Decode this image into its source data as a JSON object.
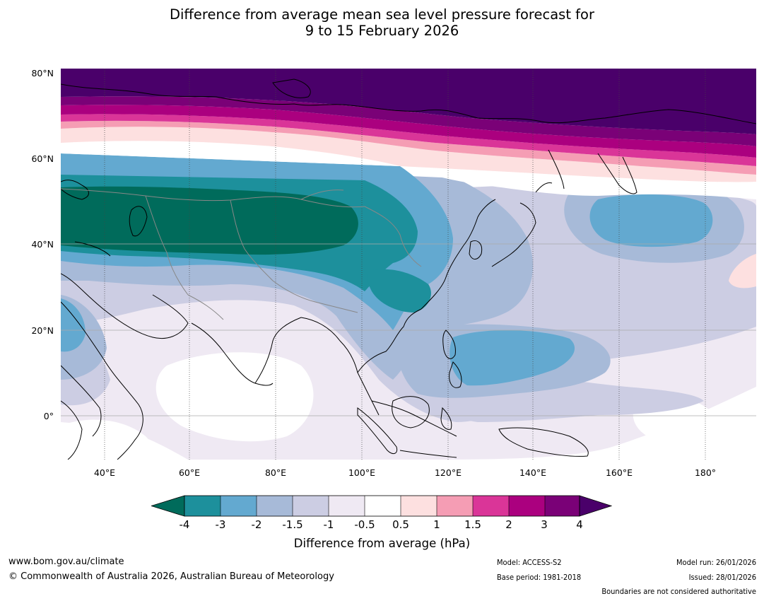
{
  "title_line1": "Difference from average mean sea level pressure forecast for",
  "title_line2": "9 to 15 February 2026",
  "lat_labels": [
    "80°N",
    "60°N",
    "40°N",
    "20°N",
    "0°"
  ],
  "lon_labels": [
    "40°E",
    "60°E",
    "80°E",
    "100°E",
    "120°E",
    "140°E",
    "160°E",
    "180°"
  ],
  "colorbar": {
    "ticks": [
      "-4",
      "-3",
      "-2",
      "-1.5",
      "-1",
      "-0.5",
      "0.5",
      "1",
      "1.5",
      "2",
      "3",
      "4"
    ],
    "label": "Difference from average (hPa)",
    "colors": {
      "lt_-4": "#006b5b",
      "-4_-3": "#1d909c",
      "-3_-2": "#63a9d0",
      "-2_-1.5": "#a7bad8",
      "-1.5_-1": "#cccde3",
      "-1_-0.5": "#efe9f3",
      "-0.5_0.5": "#ffffff",
      "0.5_1": "#fde0e0",
      "1_1.5": "#f59db4",
      "1.5_2": "#da3598",
      "2_3": "#ab007f",
      "3_4": "#7a0177",
      "gt_4": "#4a006a"
    }
  },
  "footer": {
    "website": "www.bom.gov.au/climate",
    "copyright": "© Commonwealth of Australia 2026, Australian Bureau of Meteorology",
    "model": "Model: ACCESS-S2",
    "base_period": "Base period: 1981-2018",
    "model_run": "Model run: 26/01/2026",
    "issued": "Issued: 28/01/2026",
    "disclaimer": "Boundaries are not considered authoritative"
  }
}
